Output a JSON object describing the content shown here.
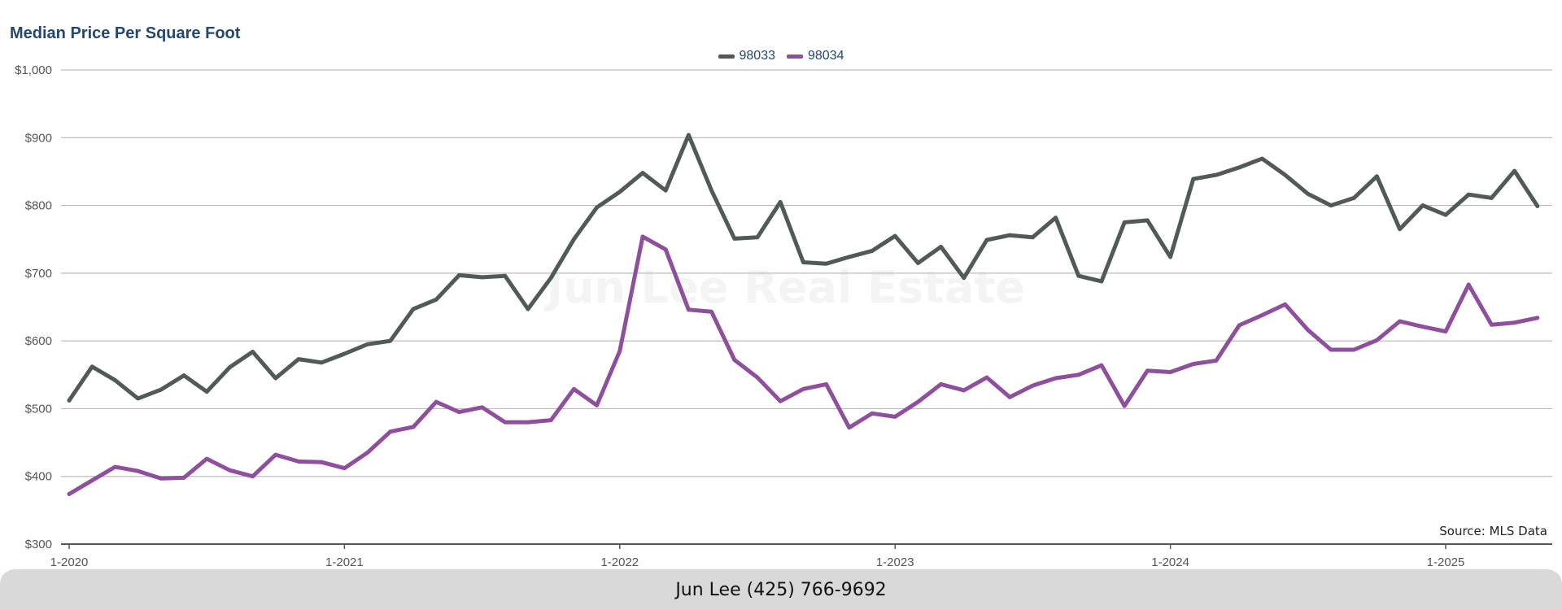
{
  "footer": {
    "contact": "Jun Lee (425) 766-9692"
  },
  "watermark": "Jun Lee Real Estate",
  "source": "Source: MLS Data",
  "colors": {
    "s98033": "#525a58",
    "s98034": "#8e4f9d",
    "grid": "#bcbcbc",
    "title": "#24476f"
  },
  "chart_data": {
    "type": "line",
    "title": "Median Price Per Square Foot",
    "xlabel": "",
    "ylabel": "",
    "ylim": [
      300,
      1000
    ],
    "yticks": [
      300,
      400,
      500,
      600,
      700,
      800,
      900,
      1000
    ],
    "ytick_labels": [
      "$300",
      "$400",
      "$500",
      "$600",
      "$700",
      "$800",
      "$900",
      "$1,000"
    ],
    "xticks": [
      {
        "label": "1-2020",
        "value": "2020-01"
      },
      {
        "label": "1-2021",
        "value": "2021-01"
      },
      {
        "label": "1-2022",
        "value": "2022-01"
      },
      {
        "label": "1-2023",
        "value": "2023-01"
      },
      {
        "label": "1-2024",
        "value": "2024-01"
      },
      {
        "label": "1-2025",
        "value": "2025-01"
      }
    ],
    "x": [
      "2020-01",
      "2020-02",
      "2020-03",
      "2020-04",
      "2020-05",
      "2020-06",
      "2020-07",
      "2020-08",
      "2020-09",
      "2020-10",
      "2020-11",
      "2020-12",
      "2021-01",
      "2021-02",
      "2021-03",
      "2021-04",
      "2021-05",
      "2021-06",
      "2021-07",
      "2021-08",
      "2021-09",
      "2021-10",
      "2021-11",
      "2021-12",
      "2022-01",
      "2022-02",
      "2022-03",
      "2022-04",
      "2022-05",
      "2022-06",
      "2022-07",
      "2022-08",
      "2022-09",
      "2022-10",
      "2022-11",
      "2022-12",
      "2023-01",
      "2023-02",
      "2023-03",
      "2023-04",
      "2023-05",
      "2023-06",
      "2023-07",
      "2023-08",
      "2023-09",
      "2023-10",
      "2023-11",
      "2023-12",
      "2024-01",
      "2024-02",
      "2024-03",
      "2024-04",
      "2024-05",
      "2024-06",
      "2024-07",
      "2024-08",
      "2024-09",
      "2024-10",
      "2024-11",
      "2024-12",
      "2025-01",
      "2025-02",
      "2025-03",
      "2025-04",
      "2025-05"
    ],
    "series": [
      {
        "name": "98033",
        "values": [
          512,
          562,
          542,
          515,
          528,
          549,
          525,
          561,
          584,
          545,
          573,
          568,
          581,
          595,
          600,
          647,
          661,
          697,
          694,
          696,
          647,
          693,
          750,
          797,
          820,
          848,
          822,
          904,
          822,
          751,
          753,
          805,
          716,
          714,
          724,
          733,
          755,
          715,
          739,
          693,
          749,
          756,
          753,
          782,
          696,
          688,
          775,
          778,
          724,
          839,
          845,
          856,
          869,
          845,
          817,
          800,
          811,
          843,
          765,
          800,
          786,
          816,
          811,
          851,
          799
        ]
      },
      {
        "name": "98034",
        "values": [
          374,
          394,
          414,
          408,
          397,
          398,
          426,
          409,
          400,
          432,
          422,
          421,
          412,
          435,
          466,
          473,
          510,
          495,
          502,
          480,
          480,
          483,
          529,
          505,
          585,
          754,
          735,
          646,
          643,
          572,
          546,
          511,
          529,
          536,
          472,
          493,
          488,
          510,
          536,
          527,
          546,
          517,
          534,
          545,
          550,
          564,
          504,
          556,
          554,
          566,
          571,
          623,
          638,
          654,
          616,
          587,
          587,
          601,
          629,
          621,
          614,
          683,
          624,
          627,
          634
        ]
      }
    ],
    "legend": "top-center",
    "grid": true
  }
}
